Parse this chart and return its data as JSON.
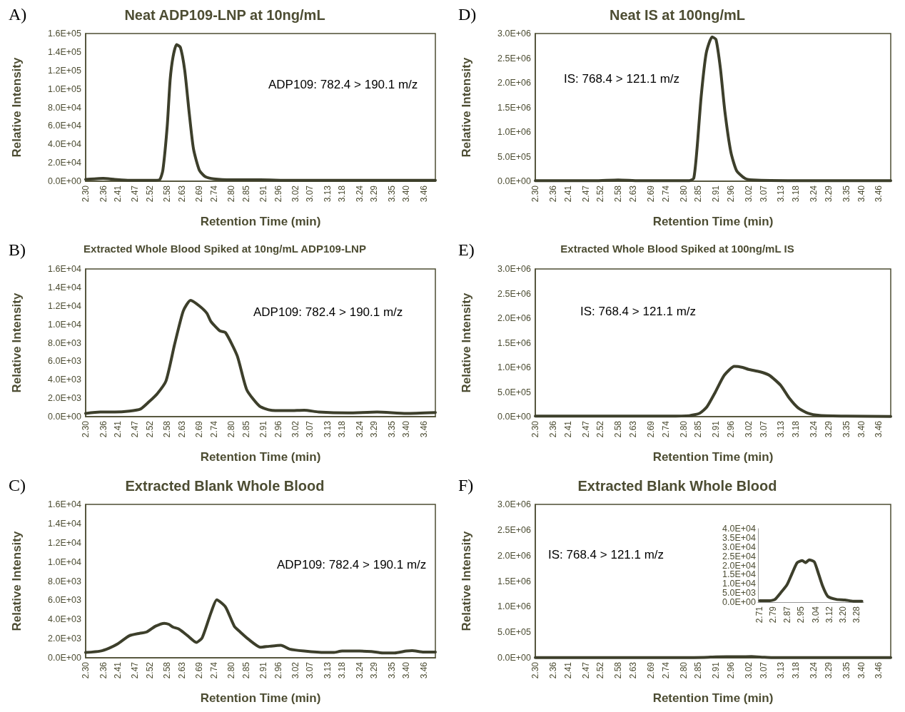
{
  "chart_data": [
    {
      "type": "line",
      "title": "Neat ADP109-LNP at 10ng/mL",
      "xlabel": "Retention Time (min)",
      "ylabel": "Relative Intensity",
      "annotations": [
        "A)",
        "ADP109: 782.4 > 190.1 m/z"
      ],
      "marker": "none",
      "x": [
        2.3,
        2.33,
        2.36,
        2.4,
        2.45,
        2.5,
        2.54,
        2.555,
        2.565,
        2.58,
        2.59,
        2.6,
        2.612,
        2.625,
        2.64,
        2.655,
        2.67,
        2.69,
        2.71,
        2.74,
        2.8,
        2.9,
        3.0,
        3.2,
        3.4,
        3.5
      ],
      "series": [
        {
          "color": "#3d3f2b",
          "values": [
            2000,
            2500,
            3000,
            2000,
            1000,
            1000,
            1000,
            2000,
            12000,
            60000,
            110000,
            135000,
            148000,
            145000,
            120000,
            75000,
            35000,
            12000,
            5000,
            2500,
            1500,
            1500,
            1000,
            1000,
            1000,
            1000
          ]
        }
      ],
      "xlim": [
        2.3,
        3.5
      ],
      "ylim": [
        0,
        160000
      ],
      "xticks": [
        {
          "value": 2.3,
          "label": "2.30"
        },
        2.36,
        2.41,
        2.47,
        2.52,
        2.58,
        2.63,
        2.69,
        2.74,
        {
          "value": 2.8,
          "label": "2.80"
        },
        2.85,
        2.91,
        2.96,
        3.02,
        3.07,
        3.13,
        3.18,
        3.24,
        3.29,
        3.35,
        {
          "value": 3.4,
          "label": "3.40"
        },
        3.46
      ],
      "yticks": [
        {
          "value": 0,
          "label": "0.0E+00"
        },
        {
          "value": 20000,
          "label": "2.0E+04"
        },
        {
          "value": 40000,
          "label": "4.0E+04"
        },
        {
          "value": 60000,
          "label": "6.0E+04"
        },
        {
          "value": 80000,
          "label": "8.0E+04"
        },
        {
          "value": 100000,
          "label": "1.0E+05"
        },
        {
          "value": 120000,
          "label": "1.2E+05"
        },
        {
          "value": 140000,
          "label": "1.4E+05"
        },
        {
          "value": 160000,
          "label": "1.6E+05"
        }
      ]
    },
    {
      "type": "line",
      "title": "Neat IS at 100ng/mL",
      "xlabel": "Retention Time (min)",
      "ylabel": "Relative Intensity",
      "annotations": [
        "D)",
        "IS: 768.4 > 121.1 m/z"
      ],
      "marker": "none",
      "x": [
        2.3,
        2.5,
        2.58,
        2.65,
        2.82,
        2.835,
        2.846,
        2.86,
        2.877,
        2.897,
        2.91,
        2.925,
        2.94,
        2.96,
        2.98,
        3.01,
        3.05,
        3.2,
        3.5
      ],
      "series": [
        {
          "color": "#3d3f2b",
          "values": [
            10000,
            10000,
            25000,
            10000,
            10000,
            60000,
            660000,
            1720000,
            2600000,
            2930000,
            2880000,
            2290000,
            1420000,
            600000,
            210000,
            50000,
            20000,
            10000,
            10000
          ]
        }
      ],
      "xlim": [
        2.3,
        3.5
      ],
      "ylim": [
        0,
        3000000
      ],
      "xticks": [
        {
          "value": 2.3,
          "label": "2.30"
        },
        2.36,
        2.41,
        2.47,
        2.52,
        2.58,
        2.63,
        2.69,
        2.74,
        {
          "value": 2.8,
          "label": "2.80"
        },
        2.85,
        2.91,
        2.96,
        3.02,
        3.07,
        3.13,
        3.18,
        3.24,
        3.29,
        3.35,
        {
          "value": 3.4,
          "label": "3.40"
        },
        3.46
      ],
      "yticks": [
        {
          "value": 0,
          "label": "0.0E+00"
        },
        {
          "value": 500000,
          "label": "5.0E+05"
        },
        {
          "value": 1000000,
          "label": "1.0E+06"
        },
        {
          "value": 1500000,
          "label": "1.5E+06"
        },
        {
          "value": 2000000,
          "label": "2.0E+06"
        },
        {
          "value": 2500000,
          "label": "2.5E+06"
        },
        {
          "value": 3000000,
          "label": "3.0E+06"
        }
      ]
    },
    {
      "type": "line",
      "title": "Extracted Whole Blood Spiked at 10ng/mL ADP109-LNP",
      "xlabel": "Retention Time (min)",
      "ylabel": "Relative Intensity",
      "annotations": [
        "B)",
        "ADP109: 782.4 > 190.1 m/z"
      ],
      "marker": "none",
      "x": [
        2.3,
        2.35,
        2.4,
        2.45,
        2.488,
        2.517,
        2.546,
        2.576,
        2.605,
        2.635,
        2.66,
        2.69,
        2.716,
        2.73,
        2.76,
        2.78,
        2.82,
        2.853,
        2.897,
        2.936,
        3.0,
        3.05,
        3.1,
        3.2,
        3.3,
        3.4,
        3.5
      ],
      "series": [
        {
          "color": "#3d3f2b",
          "values": [
            350,
            500,
            500,
            600,
            820,
            1600,
            2500,
            3900,
            7800,
            11450,
            12600,
            12000,
            11200,
            10300,
            9300,
            9100,
            6600,
            2900,
            1130,
            700,
            650,
            700,
            500,
            400,
            500,
            350,
            450
          ]
        }
      ],
      "xlim": [
        2.3,
        3.5
      ],
      "ylim": [
        0,
        16000
      ],
      "xticks": [
        {
          "value": 2.3,
          "label": "2.30"
        },
        2.36,
        2.41,
        2.47,
        2.52,
        2.58,
        2.63,
        2.69,
        2.74,
        {
          "value": 2.8,
          "label": "2.80"
        },
        2.85,
        2.91,
        2.96,
        3.02,
        3.07,
        3.13,
        3.18,
        3.24,
        3.29,
        3.35,
        {
          "value": 3.4,
          "label": "3.40"
        },
        3.46
      ],
      "yticks": [
        {
          "value": 0,
          "label": "0.0E+00"
        },
        {
          "value": 2000,
          "label": "2.0E+03"
        },
        {
          "value": 4000,
          "label": "4.0E+03"
        },
        {
          "value": 6000,
          "label": "6.0E+03"
        },
        {
          "value": 8000,
          "label": "8.0E+03"
        },
        {
          "value": 10000,
          "label": "1.0E+04"
        },
        {
          "value": 12000,
          "label": "1.2E+04"
        },
        {
          "value": 14000,
          "label": "1.4E+04"
        },
        {
          "value": 16000,
          "label": "1.6E+04"
        }
      ]
    },
    {
      "type": "line",
      "title": "Extracted Whole Blood Spiked at 100ng/mL IS",
      "xlabel": "Retention Time (min)",
      "ylabel": "Relative Intensity",
      "annotations": [
        "E)",
        "IS: 768.4 > 121.1 m/z"
      ],
      "marker": "none",
      "x": [
        2.3,
        2.75,
        2.82,
        2.855,
        2.879,
        2.908,
        2.938,
        2.972,
        3.0,
        3.02,
        3.06,
        3.09,
        3.128,
        3.157,
        3.187,
        3.22,
        3.26,
        3.35,
        3.5
      ],
      "series": [
        {
          "color": "#3d3f2b",
          "values": [
            10000,
            10000,
            20000,
            70000,
            195000,
            500000,
            840000,
            1020000,
            1000000,
            960000,
            910000,
            840000,
            640000,
            380000,
            180000,
            70000,
            25000,
            10000,
            5000
          ]
        }
      ],
      "xlim": [
        2.3,
        3.5
      ],
      "ylim": [
        0,
        3000000
      ],
      "xticks": [
        {
          "value": 2.3,
          "label": "2.30"
        },
        2.36,
        2.41,
        2.47,
        2.52,
        2.58,
        2.63,
        2.69,
        2.74,
        {
          "value": 2.8,
          "label": "2.80"
        },
        2.85,
        2.91,
        2.96,
        3.02,
        3.07,
        3.13,
        3.18,
        3.24,
        3.29,
        3.35,
        {
          "value": 3.4,
          "label": "3.40"
        },
        3.46
      ],
      "yticks": [
        {
          "value": 0,
          "label": "0.0E+00"
        },
        {
          "value": 500000,
          "label": "5.0E+05"
        },
        {
          "value": 1000000,
          "label": "1.0E+06"
        },
        {
          "value": 1500000,
          "label": "1.5E+06"
        },
        {
          "value": 2000000,
          "label": "2.0E+06"
        },
        {
          "value": 2500000,
          "label": "2.5E+06"
        },
        {
          "value": 3000000,
          "label": "3.0E+06"
        }
      ]
    },
    {
      "type": "line",
      "title": "Extracted Blank Whole Blood",
      "xlabel": "Retention Time (min)",
      "ylabel": "Relative Intensity",
      "annotations": [
        "C)",
        "ADP109: 782.4 > 190.1 m/z"
      ],
      "marker": "none",
      "x": [
        2.3,
        2.35,
        2.38,
        2.41,
        2.45,
        2.485,
        2.51,
        2.54,
        2.57,
        2.585,
        2.6,
        2.62,
        2.65,
        2.68,
        2.7,
        2.73,
        2.75,
        2.78,
        2.81,
        2.83,
        2.86,
        2.9,
        2.93,
        2.97,
        3.0,
        3.05,
        3.12,
        3.15,
        3.18,
        3.24,
        3.28,
        3.32,
        3.36,
        3.4,
        3.42,
        3.46,
        3.5
      ],
      "series": [
        {
          "color": "#3d3f2b",
          "values": [
            550,
            700,
            1000,
            1450,
            2300,
            2550,
            2700,
            3300,
            3600,
            3500,
            3200,
            3000,
            2300,
            1600,
            2100,
            4700,
            6050,
            5300,
            3300,
            2700,
            1900,
            1100,
            1200,
            1300,
            900,
            700,
            550,
            550,
            700,
            700,
            650,
            500,
            500,
            700,
            750,
            600,
            600
          ]
        }
      ],
      "xlim": [
        2.3,
        3.5
      ],
      "ylim": [
        0,
        16000
      ],
      "xticks": [
        {
          "value": 2.3,
          "label": "2.30"
        },
        2.36,
        2.41,
        2.47,
        2.52,
        2.58,
        2.63,
        2.69,
        2.74,
        {
          "value": 2.8,
          "label": "2.80"
        },
        2.85,
        2.91,
        2.96,
        3.02,
        3.07,
        3.13,
        3.18,
        3.24,
        3.29,
        3.35,
        {
          "value": 3.4,
          "label": "3.40"
        },
        3.46
      ],
      "yticks": [
        {
          "value": 0,
          "label": "0.0E+00"
        },
        {
          "value": 2000,
          "label": "2.0E+03"
        },
        {
          "value": 4000,
          "label": "4.0E+03"
        },
        {
          "value": 6000,
          "label": "6.0E+03"
        },
        {
          "value": 8000,
          "label": "8.0E+03"
        },
        {
          "value": 10000,
          "label": "1.0E+04"
        },
        {
          "value": 12000,
          "label": "1.2E+04"
        },
        {
          "value": 14000,
          "label": "1.4E+04"
        },
        {
          "value": 16000,
          "label": "1.6E+04"
        }
      ]
    },
    {
      "type": "line",
      "title": "Extracted Blank Whole Blood",
      "xlabel": "Retention Time (min)",
      "ylabel": "Relative Intensity",
      "annotations": [
        "F)",
        "IS: 768.4 > 121.1 m/z"
      ],
      "marker": "none",
      "x": [
        2.3,
        2.8,
        2.87,
        2.91,
        2.95,
        2.99,
        3.03,
        3.07,
        3.1,
        3.2,
        3.5
      ],
      "series": [
        {
          "color": "#3d3f2b",
          "values": [
            3000,
            3000,
            8000,
            18000,
            22000,
            21000,
            23000,
            12000,
            5000,
            3000,
            2000
          ]
        }
      ],
      "xlim": [
        2.3,
        3.5
      ],
      "ylim": [
        0,
        3000000
      ],
      "xticks": [
        {
          "value": 2.3,
          "label": "2.30"
        },
        2.36,
        2.41,
        2.47,
        2.52,
        2.58,
        2.63,
        2.69,
        2.74,
        {
          "value": 2.8,
          "label": "2.80"
        },
        2.85,
        2.91,
        2.96,
        3.02,
        3.07,
        3.13,
        3.18,
        3.24,
        3.29,
        3.35,
        {
          "value": 3.4,
          "label": "3.40"
        },
        3.46
      ],
      "yticks": [
        {
          "value": 0,
          "label": "0.0E+00"
        },
        {
          "value": 500000,
          "label": "5.0E+05"
        },
        {
          "value": 1000000,
          "label": "1.0E+06"
        },
        {
          "value": 1500000,
          "label": "1.5E+06"
        },
        {
          "value": 2000000,
          "label": "2.0E+06"
        },
        {
          "value": 2500000,
          "label": "2.5E+06"
        },
        {
          "value": 3000000,
          "label": "3.0E+06"
        }
      ]
    },
    {
      "type": "line",
      "marker": "none",
      "x": [
        2.71,
        2.77,
        2.8,
        2.83,
        2.87,
        2.9,
        2.93,
        2.96,
        2.98,
        3.0,
        3.03,
        3.05,
        3.08,
        3.11,
        3.16,
        3.21,
        3.26,
        3.31
      ],
      "series": [
        {
          "color": "#3d3f2b",
          "values": [
            800,
            800,
            1500,
            4700,
            9400,
            15600,
            21500,
            22600,
            21500,
            23000,
            22000,
            17000,
            8600,
            3100,
            1500,
            1200,
            500,
            500
          ]
        }
      ],
      "xlim": [
        2.7,
        3.32
      ],
      "ylim": [
        0,
        40000
      ],
      "xticks": [
        2.71,
        2.79,
        2.87,
        2.95,
        3.04,
        3.12,
        {
          "value": 3.2,
          "label": "3.20"
        },
        3.28
      ],
      "yticks": [
        {
          "value": 0,
          "label": "0.0E+00"
        },
        {
          "value": 5000,
          "label": "5.0E+03"
        },
        {
          "value": 10000,
          "label": "1.0E+04"
        },
        {
          "value": 15000,
          "label": "1.5E+04"
        },
        {
          "value": 20000,
          "label": "2.0E+04"
        },
        {
          "value": 25000,
          "label": "2.5E+04"
        },
        {
          "value": 30000,
          "label": "3.0E+04"
        },
        {
          "value": 35000,
          "label": "3.5E+04"
        },
        {
          "value": 40000,
          "label": "4.0E+04"
        }
      ]
    }
  ]
}
